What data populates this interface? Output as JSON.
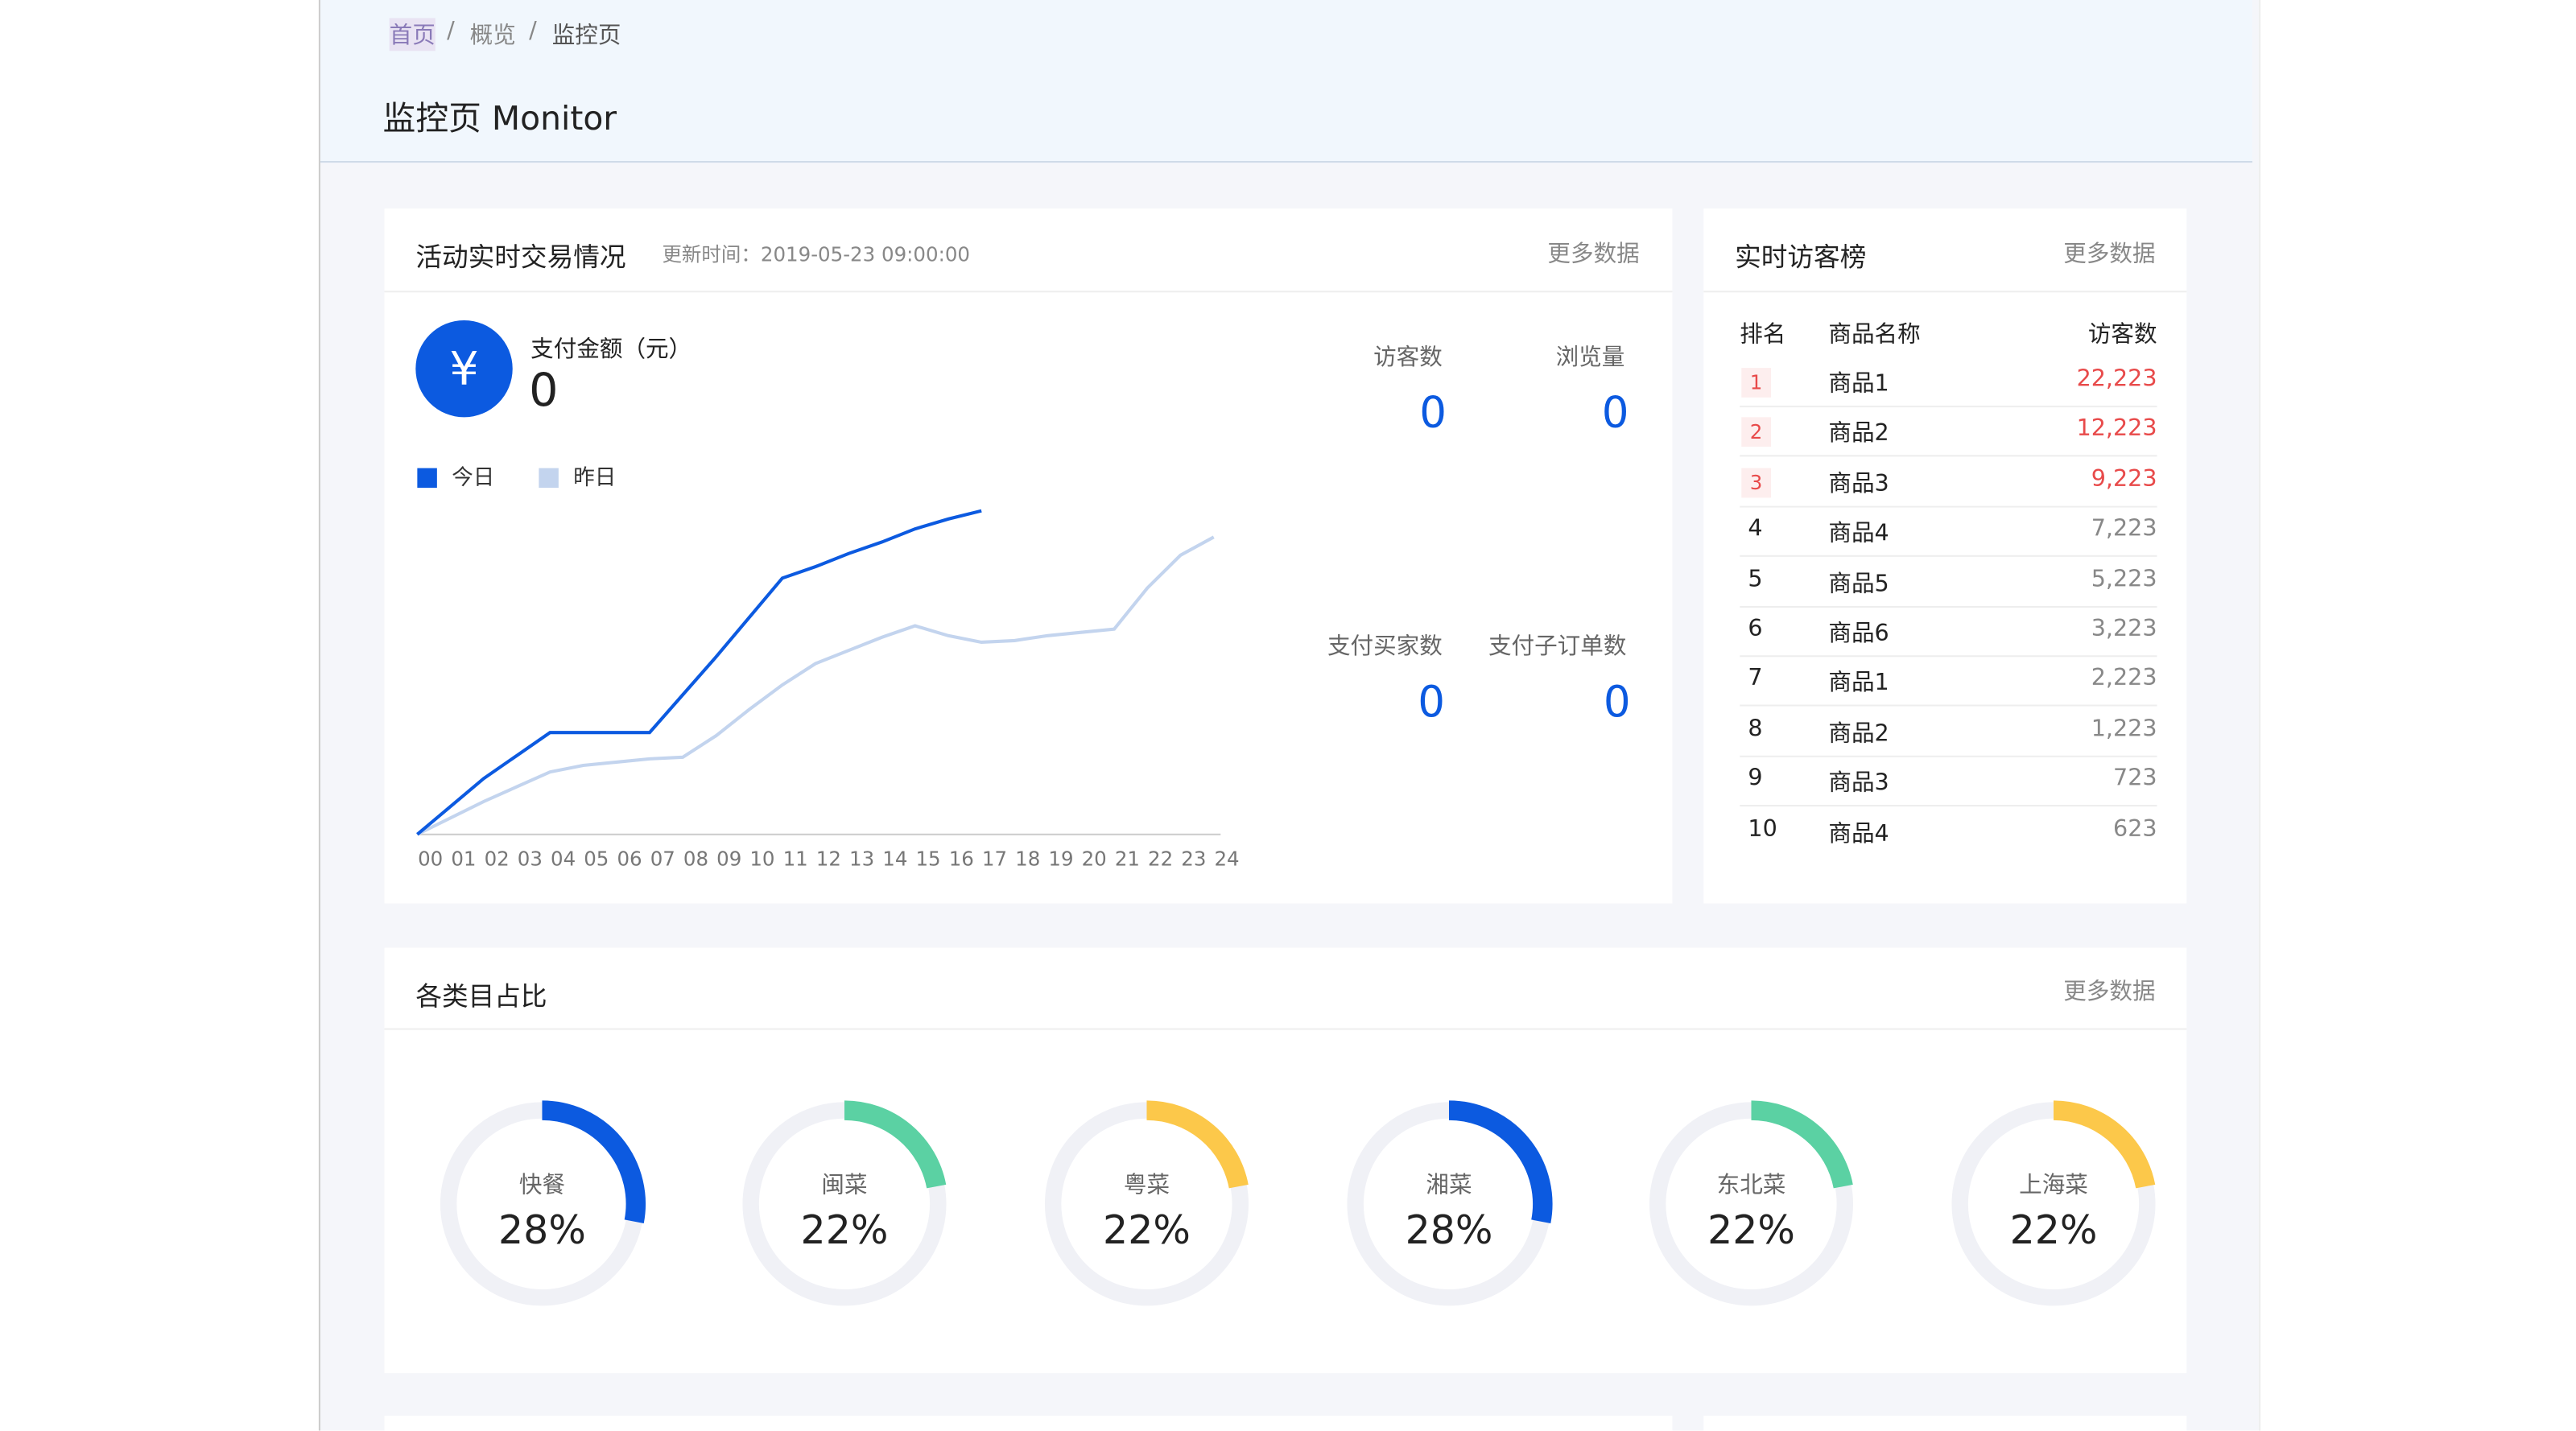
{
  "breadcrumb": [
    "首页",
    "概览",
    "监控页"
  ],
  "title": "监控页 Monitor",
  "trade": {
    "title": "活动实时交易情况",
    "update": "更新时间：2019-05-23 09:00:00",
    "more": "更多数据",
    "currency": "¥",
    "pay_label": "支付金额（元）",
    "pay_value": "0",
    "stats": [
      {
        "label": "访客数",
        "value": "0"
      },
      {
        "label": "浏览量",
        "value": "0"
      },
      {
        "label": "支付买家数",
        "value": "0"
      },
      {
        "label": "支付子订单数",
        "value": "0"
      }
    ]
  },
  "ranking": {
    "title": "实时访客榜",
    "more": "更多数据",
    "header": [
      "排名",
      "商品名称",
      "访客数"
    ],
    "rows": [
      [
        "1",
        "商品1",
        "22,223"
      ],
      [
        "2",
        "商品2",
        "12,223"
      ],
      [
        "3",
        "商品3",
        "9,223"
      ],
      [
        "4",
        "商品4",
        "7,223"
      ],
      [
        "5",
        "商品5",
        "5,223"
      ],
      [
        "6",
        "商品6",
        "3,223"
      ],
      [
        "7",
        "商品1",
        "2,223"
      ],
      [
        "8",
        "商品2",
        "1,223"
      ],
      [
        "9",
        "商品3",
        "723"
      ],
      [
        "10",
        "商品4",
        "623"
      ]
    ]
  },
  "category": {
    "title": "各类目占比",
    "more": "更多数据"
  },
  "chart_data": [
    {
      "type": "line",
      "categories": [
        "00",
        "01",
        "02",
        "03",
        "04",
        "05",
        "06",
        "07",
        "08",
        "09",
        "10",
        "11",
        "12",
        "13",
        "14",
        "15",
        "16",
        "17",
        "18",
        "19",
        "20",
        "21",
        "22",
        "23",
        "24"
      ],
      "series": [
        {
          "name": "今日",
          "color": "#0c5ae0",
          "values": [
            0,
            17,
            34,
            48,
            62,
            62,
            62,
            62,
            85,
            108,
            132,
            156,
            163,
            171,
            178,
            186,
            192,
            197,
            null,
            null,
            null,
            null,
            null,
            null,
            null
          ]
        },
        {
          "name": "昨日",
          "color": "#c3d4ee",
          "values": [
            0,
            10,
            20,
            29,
            38,
            42,
            44,
            46,
            47,
            60,
            76,
            91,
            104,
            112,
            120,
            127,
            121,
            117,
            118,
            121,
            123,
            125,
            150,
            170,
            181
          ]
        }
      ]
    },
    {
      "type": "donut",
      "categories": [
        "快餐",
        "闽菜",
        "粤菜",
        "湘菜",
        "东北菜",
        "上海菜"
      ],
      "values": [
        28,
        22,
        22,
        28,
        22,
        22
      ],
      "value_labels": [
        "28%",
        "22%",
        "22%",
        "28%",
        "22%",
        "22%"
      ],
      "colors": [
        "#0c5ae0",
        "#5bd1a3",
        "#fcc84a",
        "#0c5ae0",
        "#5bd1a3",
        "#fcc84a"
      ]
    }
  ]
}
